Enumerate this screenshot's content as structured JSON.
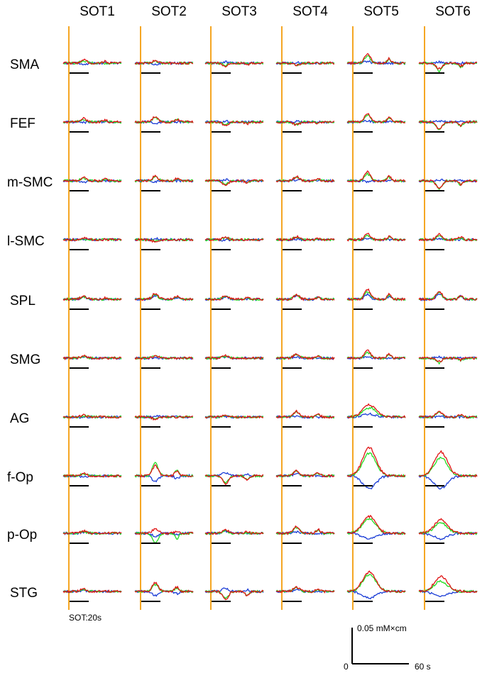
{
  "chart_data": {
    "type": "line",
    "columns": [
      "SOT1",
      "SOT2",
      "SOT3",
      "SOT4",
      "SOT5",
      "SOT6"
    ],
    "rows": [
      "SMA",
      "FEF",
      "m-SMC",
      "l-SMC",
      "SPL",
      "SMG",
      "AG",
      "f-Op",
      "p-Op",
      "STG"
    ],
    "annotation": "SOT:20s",
    "scale_bar": {
      "y_label": "0.05 mM×cm",
      "x_label": "60 s",
      "origin_label": "0"
    },
    "series_colors": [
      "#22dd22",
      "#e01414",
      "#1a3cd6"
    ],
    "marker_color": "#f5a623",
    "bar_color": "#000000",
    "peak_amplitude_mM_cm": [
      [
        [
          0.004,
          0.006,
          -0.002
        ],
        [
          0.003,
          0.004,
          -0.002
        ],
        [
          -0.004,
          -0.005,
          0.002
        ],
        [
          -0.004,
          -0.004,
          0.001
        ],
        [
          0.012,
          0.016,
          0.003
        ],
        [
          -0.014,
          -0.01,
          0.002
        ]
      ],
      [
        [
          0.005,
          0.006,
          -0.001
        ],
        [
          0.008,
          0.009,
          -0.002
        ],
        [
          -0.005,
          -0.006,
          0.001
        ],
        [
          -0.005,
          -0.005,
          0.001
        ],
        [
          0.012,
          0.015,
          0.002
        ],
        [
          -0.014,
          -0.012,
          0.002
        ]
      ],
      [
        [
          0.005,
          0.006,
          -0.002
        ],
        [
          0.006,
          0.008,
          -0.002
        ],
        [
          -0.006,
          -0.007,
          0.002
        ],
        [
          0.006,
          0.007,
          0.001
        ],
        [
          0.012,
          0.016,
          -0.002
        ],
        [
          -0.014,
          -0.012,
          0.002
        ]
      ],
      [
        [
          0.002,
          0.003,
          0.001
        ],
        [
          -0.003,
          -0.004,
          0.002
        ],
        [
          0.003,
          0.004,
          -0.001
        ],
        [
          0.004,
          0.005,
          0.001
        ],
        [
          0.008,
          0.011,
          0.002
        ],
        [
          0.006,
          0.01,
          0.002
        ]
      ],
      [
        [
          0.004,
          0.005,
          0.004
        ],
        [
          0.008,
          0.01,
          0.007
        ],
        [
          0.005,
          0.006,
          0.004
        ],
        [
          0.007,
          0.008,
          0.006
        ],
        [
          0.014,
          0.018,
          0.008
        ],
        [
          0.012,
          0.014,
          0.01
        ]
      ],
      [
        [
          0.003,
          0.004,
          0.002
        ],
        [
          0.003,
          0.004,
          0.001
        ],
        [
          0.003,
          0.004,
          0.001
        ],
        [
          0.006,
          0.008,
          0.002
        ],
        [
          0.01,
          0.014,
          0.002
        ],
        [
          -0.008,
          -0.006,
          0.002
        ]
      ],
      [
        [
          0.002,
          0.003,
          -0.001
        ],
        [
          -0.004,
          -0.004,
          0.002
        ],
        [
          0.002,
          0.003,
          0.001
        ],
        [
          0.008,
          0.01,
          0.001
        ],
        [
          0.016,
          0.022,
          0.005
        ],
        [
          0.008,
          0.01,
          0.002
        ]
      ],
      [
        [
          0.003,
          0.004,
          -0.002
        ],
        [
          0.022,
          0.018,
          -0.01
        ],
        [
          -0.012,
          -0.014,
          0.006
        ],
        [
          0.008,
          0.01,
          0.004
        ],
        [
          0.04,
          0.05,
          -0.022
        ],
        [
          0.032,
          0.042,
          -0.022
        ]
      ],
      [
        [
          0.003,
          0.004,
          0.002
        ],
        [
          -0.018,
          0.008,
          -0.006
        ],
        [
          0.004,
          0.006,
          0.004
        ],
        [
          0.01,
          0.013,
          0.003
        ],
        [
          0.026,
          0.03,
          -0.01
        ],
        [
          0.018,
          0.024,
          -0.01
        ]
      ],
      [
        [
          0.003,
          0.004,
          0.002
        ],
        [
          0.012,
          0.016,
          -0.008
        ],
        [
          -0.012,
          -0.014,
          0.006
        ],
        [
          0.006,
          0.008,
          0.003
        ],
        [
          0.03,
          0.034,
          -0.012
        ],
        [
          0.018,
          0.026,
          -0.008
        ]
      ]
    ]
  }
}
